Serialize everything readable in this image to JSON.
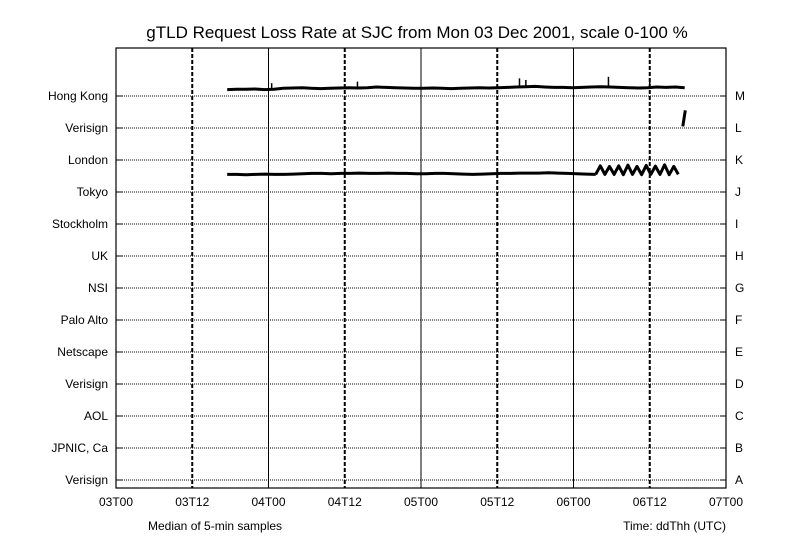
{
  "chart_data": {
    "type": "line",
    "title": "gTLD Request Loss Rate at SJC from Mon 03 Dec 2001, scale 0-100 %",
    "footer_left": "Median of 5-min samples",
    "footer_right": "Time: ddThh (UTC)",
    "x_ticks": [
      "03T00",
      "03T12",
      "04T00",
      "04T12",
      "05T00",
      "05T12",
      "06T00",
      "06T12",
      "07T00"
    ],
    "x_range_hours": [
      0,
      96
    ],
    "rows": [
      {
        "letter": "M",
        "server": "Hong Kong"
      },
      {
        "letter": "L",
        "server": "Verisign"
      },
      {
        "letter": "K",
        "server": "London"
      },
      {
        "letter": "J",
        "server": "Tokyo"
      },
      {
        "letter": "I",
        "server": "Stockholm"
      },
      {
        "letter": "H",
        "server": "UK"
      },
      {
        "letter": "G",
        "server": "NSI"
      },
      {
        "letter": "F",
        "server": "Palo Alto"
      },
      {
        "letter": "E",
        "server": "Netscape"
      },
      {
        "letter": "D",
        "server": "Verisign"
      },
      {
        "letter": "C",
        "server": "AOL"
      },
      {
        "letter": "B",
        "server": "JPNIC, Ca"
      },
      {
        "letter": "A",
        "server": "Verisign"
      }
    ],
    "grid": true,
    "series": [
      {
        "row": "M",
        "x_start_hours": 17.5,
        "x_end_hours": 89.5,
        "loss_percent": [
          20,
          21,
          21,
          22,
          20,
          21,
          24,
          25,
          26,
          24,
          23,
          24,
          25,
          26,
          25,
          26,
          28,
          27,
          26,
          25,
          24,
          24,
          25,
          24,
          23,
          24,
          25,
          26,
          25,
          26,
          27,
          28,
          29,
          30,
          28,
          27,
          27,
          26,
          27,
          28,
          29,
          28,
          27,
          26,
          25,
          26,
          28,
          27,
          28,
          26
        ],
        "spikes": [
          {
            "x_hours": 24.5,
            "loss_percent": 40
          },
          {
            "x_hours": 38.0,
            "loss_percent": 45
          },
          {
            "x_hours": 63.5,
            "loss_percent": 55
          },
          {
            "x_hours": 64.5,
            "loss_percent": 50
          },
          {
            "x_hours": 77.5,
            "loss_percent": 60
          },
          {
            "x_hours": 84.0,
            "loss_percent": 45
          }
        ]
      },
      {
        "row": "L",
        "x_start_hours": 89.2,
        "x_end_hours": 89.6,
        "loss_percent": [
          5,
          55
        ]
      },
      {
        "row": "J",
        "x_start_hours": 17.5,
        "x_end_hours": 75.5,
        "loss_percent": [
          55,
          55,
          54,
          55,
          56,
          55,
          55,
          56,
          57,
          58,
          58,
          57,
          58,
          58,
          59,
          58,
          58,
          59,
          58,
          58,
          57,
          57,
          58,
          58,
          57,
          56,
          55,
          56,
          57,
          58,
          58,
          59,
          59,
          59,
          60,
          59,
          58,
          57,
          56,
          55
        ]
      },
      {
        "row": "J",
        "x_start_hours": 75.5,
        "x_end_hours": 88.5,
        "loss_percent": [
          55,
          82,
          55,
          80,
          55,
          82,
          54,
          84,
          55,
          80,
          54,
          83,
          55,
          81,
          55,
          85,
          54,
          80,
          55
        ]
      }
    ]
  }
}
